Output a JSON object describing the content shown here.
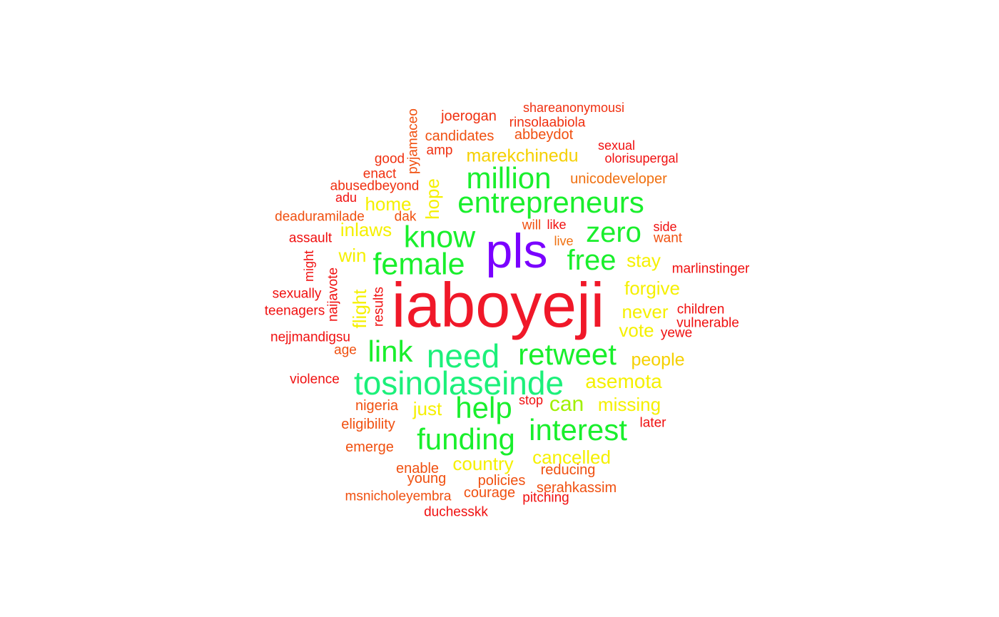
{
  "words": [
    {
      "text": "iaboyeji",
      "color": "#f01829"
    },
    {
      "text": "pls",
      "color": "#7a00ff"
    },
    {
      "text": "need",
      "color": "#1cf07a"
    },
    {
      "text": "tosinolaseinde",
      "color": "#1cf07a"
    },
    {
      "text": "know",
      "color": "#19ef2c"
    },
    {
      "text": "female",
      "color": "#19ef2c"
    },
    {
      "text": "entrepreneurs",
      "color": "#19ef2c"
    },
    {
      "text": "million",
      "color": "#19ef2c"
    },
    {
      "text": "zero",
      "color": "#19ef2c"
    },
    {
      "text": "free",
      "color": "#19ef2c"
    },
    {
      "text": "retweet",
      "color": "#19ef2c"
    },
    {
      "text": "link",
      "color": "#19ef2c"
    },
    {
      "text": "help",
      "color": "#19ef2c"
    },
    {
      "text": "funding",
      "color": "#19ef2c"
    },
    {
      "text": "interest",
      "color": "#19ef2c"
    },
    {
      "text": "can",
      "color": "#a0f000"
    },
    {
      "text": "marekchinedu",
      "color": "#f5d000"
    },
    {
      "text": "home",
      "color": "#f5f000"
    },
    {
      "text": "hope",
      "color": "#f5f000"
    },
    {
      "text": "inlaws",
      "color": "#f5f000"
    },
    {
      "text": "win",
      "color": "#f5f000"
    },
    {
      "text": "flight",
      "color": "#f5f000"
    },
    {
      "text": "stay",
      "color": "#f5f000"
    },
    {
      "text": "forgive",
      "color": "#f5f000"
    },
    {
      "text": "never",
      "color": "#f5f000"
    },
    {
      "text": "vote",
      "color": "#f5f000"
    },
    {
      "text": "people",
      "color": "#f5d000"
    },
    {
      "text": "asemota",
      "color": "#f5f000"
    },
    {
      "text": "missing",
      "color": "#f5f000"
    },
    {
      "text": "just",
      "color": "#f5f000"
    },
    {
      "text": "country",
      "color": "#f5f000"
    },
    {
      "text": "cancelled",
      "color": "#f5f000"
    },
    {
      "text": "shareanonymousi",
      "color": "#f03010"
    },
    {
      "text": "joerogan",
      "color": "#f03010"
    },
    {
      "text": "rinsolaabiola",
      "color": "#f03010"
    },
    {
      "text": "pyjamaceo",
      "color": "#f05010"
    },
    {
      "text": "candidates",
      "color": "#f05010"
    },
    {
      "text": "abbeydot",
      "color": "#f05010"
    },
    {
      "text": "amp",
      "color": "#f03010"
    },
    {
      "text": "sexual",
      "color": "#f01010"
    },
    {
      "text": "olorisupergal",
      "color": "#f01010"
    },
    {
      "text": "good",
      "color": "#f03010"
    },
    {
      "text": "enact",
      "color": "#f03010"
    },
    {
      "text": "unicodeveloper",
      "color": "#f07010"
    },
    {
      "text": "abusedbeyond",
      "color": "#f03010"
    },
    {
      "text": "adu",
      "color": "#f01010"
    },
    {
      "text": "deaduramilade",
      "color": "#f05010"
    },
    {
      "text": "dak",
      "color": "#f05010"
    },
    {
      "text": "will",
      "color": "#f05010"
    },
    {
      "text": "like",
      "color": "#f01010"
    },
    {
      "text": "live",
      "color": "#f07010"
    },
    {
      "text": "side",
      "color": "#f01010"
    },
    {
      "text": "want",
      "color": "#f05010"
    },
    {
      "text": "assault",
      "color": "#f01010"
    },
    {
      "text": "might",
      "color": "#f01010"
    },
    {
      "text": "naijavote",
      "color": "#f01010"
    },
    {
      "text": "results",
      "color": "#f01010"
    },
    {
      "text": "marlinstinger",
      "color": "#f01010"
    },
    {
      "text": "sexually",
      "color": "#f01010"
    },
    {
      "text": "teenagers",
      "color": "#f01010"
    },
    {
      "text": "children",
      "color": "#f01010"
    },
    {
      "text": "vulnerable",
      "color": "#f01010"
    },
    {
      "text": "yewe",
      "color": "#f01010"
    },
    {
      "text": "nejjmandigsu",
      "color": "#f01010"
    },
    {
      "text": "age",
      "color": "#f05010"
    },
    {
      "text": "violence",
      "color": "#f01010"
    },
    {
      "text": "stop",
      "color": "#f01010"
    },
    {
      "text": "nigeria",
      "color": "#f05010"
    },
    {
      "text": "eligibility",
      "color": "#f05010"
    },
    {
      "text": "later",
      "color": "#f01010"
    },
    {
      "text": "emerge",
      "color": "#f05010"
    },
    {
      "text": "enable",
      "color": "#f05010"
    },
    {
      "text": "reducing",
      "color": "#f05010"
    },
    {
      "text": "young",
      "color": "#f05010"
    },
    {
      "text": "policies",
      "color": "#f05010"
    },
    {
      "text": "serahkassim",
      "color": "#f05010"
    },
    {
      "text": "msnicholeyembra",
      "color": "#f05010"
    },
    {
      "text": "courage",
      "color": "#f05010"
    },
    {
      "text": "pitching",
      "color": "#f01010"
    },
    {
      "text": "duchesskk",
      "color": "#f01010"
    }
  ]
}
